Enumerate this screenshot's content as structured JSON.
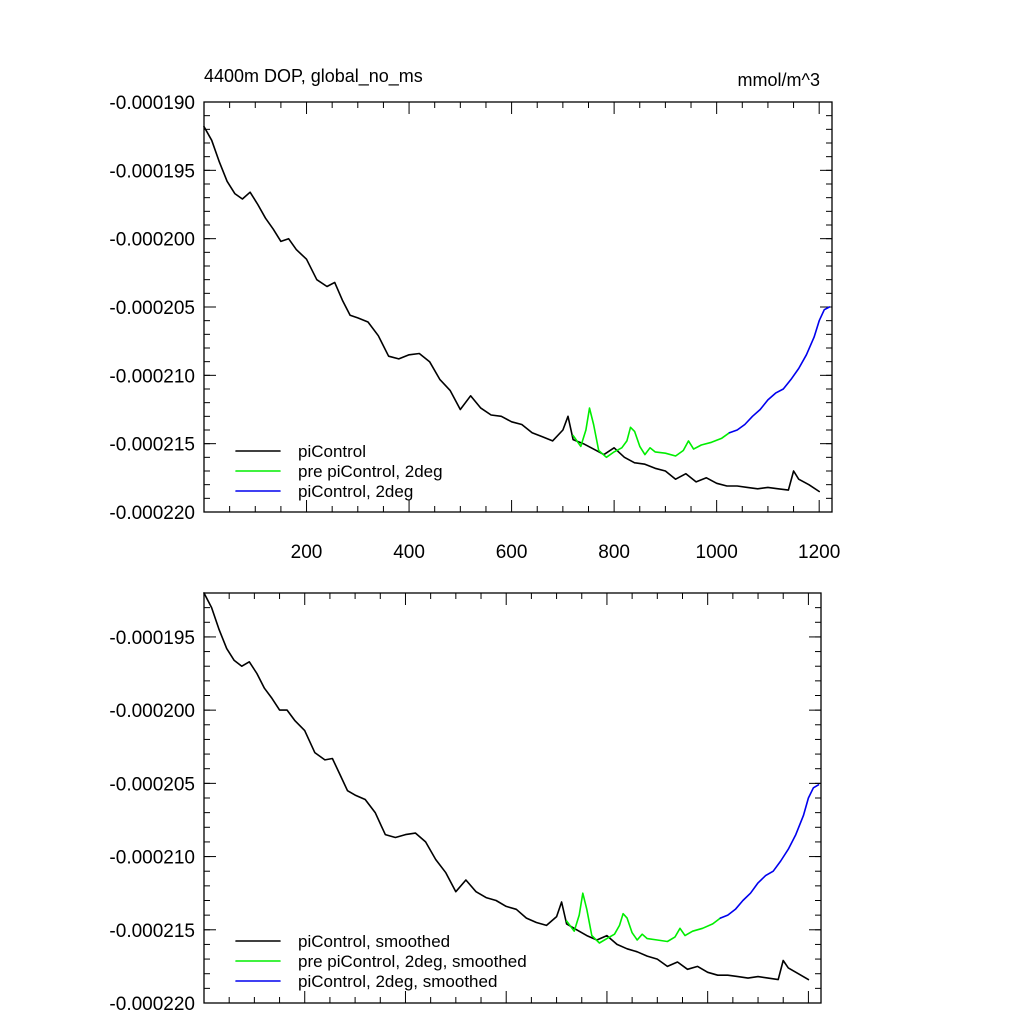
{
  "colors": {
    "piControl": "#000000",
    "pre_piControl_2deg": "#00ee00",
    "piControl_2deg": "#0000ee"
  },
  "chart_data": [
    {
      "type": "line",
      "title_left": "4400m DOP, global_no_ms",
      "title_right": "mmol/m^3",
      "xlim": [
        0,
        1225
      ],
      "ylim": [
        -0.00022,
        -0.00019
      ],
      "xticks": [
        200,
        400,
        600,
        800,
        1000,
        1200
      ],
      "xtick_labels": [
        "200",
        "400",
        "600",
        "800",
        "1000",
        "1200"
      ],
      "yticks": [
        -0.00019,
        -0.000195,
        -0.0002,
        -0.000205,
        -0.00021,
        -0.000215,
        -0.00022
      ],
      "ytick_labels": [
        "-0.000190",
        "-0.000195",
        "-0.000200",
        "-0.000205",
        "-0.000210",
        "-0.000215",
        "-0.000220"
      ],
      "legend_position": "bottom-left",
      "series": [
        {
          "name": "piControl",
          "color": "#000000",
          "x": [
            0,
            15,
            30,
            45,
            60,
            75,
            90,
            105,
            120,
            135,
            150,
            165,
            180,
            200,
            220,
            240,
            255,
            270,
            285,
            300,
            320,
            340,
            360,
            380,
            400,
            420,
            440,
            460,
            480,
            500,
            520,
            540,
            560,
            580,
            600,
            620,
            640,
            660,
            680,
            700,
            710,
            720,
            740,
            760,
            780,
            800,
            820,
            840,
            860,
            880,
            900,
            920,
            940,
            960,
            980,
            1000,
            1020,
            1040,
            1060,
            1080,
            1100,
            1120,
            1140,
            1150,
            1160,
            1180,
            1200
          ],
          "y": [
            -0.0001918,
            -0.0001928,
            -0.0001944,
            -0.0001958,
            -0.0001967,
            -0.0001971,
            -0.0001966,
            -0.0001975,
            -0.0001985,
            -0.0001993,
            -0.0002002,
            -0.0002,
            -0.0002008,
            -0.0002015,
            -0.000203,
            -0.0002035,
            -0.0002032,
            -0.0002045,
            -0.0002056,
            -0.0002058,
            -0.0002061,
            -0.0002071,
            -0.0002086,
            -0.0002088,
            -0.0002085,
            -0.0002084,
            -0.000209,
            -0.0002103,
            -0.0002111,
            -0.0002125,
            -0.0002115,
            -0.0002124,
            -0.0002129,
            -0.000213,
            -0.0002134,
            -0.0002136,
            -0.0002142,
            -0.0002145,
            -0.0002148,
            -0.000214,
            -0.000213,
            -0.0002147,
            -0.000215,
            -0.0002154,
            -0.0002158,
            -0.0002153,
            -0.000216,
            -0.0002164,
            -0.0002165,
            -0.0002168,
            -0.000217,
            -0.0002176,
            -0.0002172,
            -0.0002178,
            -0.0002175,
            -0.0002179,
            -0.0002181,
            -0.0002181,
            -0.0002182,
            -0.0002183,
            -0.0002182,
            -0.0002183,
            -0.0002184,
            -0.000217,
            -0.0002176,
            -0.000218,
            -0.0002185
          ]
        },
        {
          "name": "pre piControl, 2deg",
          "color": "#00ee00",
          "x": [
            720,
            735,
            745,
            752,
            760,
            770,
            785,
            800,
            815,
            825,
            832,
            840,
            850,
            860,
            870,
            880,
            900,
            920,
            935,
            945,
            955,
            970,
            990,
            1010,
            1025
          ],
          "y": [
            -0.0002144,
            -0.0002152,
            -0.000214,
            -0.0002124,
            -0.0002136,
            -0.0002155,
            -0.000216,
            -0.0002156,
            -0.0002153,
            -0.0002148,
            -0.0002138,
            -0.0002141,
            -0.0002152,
            -0.0002158,
            -0.0002153,
            -0.0002156,
            -0.0002157,
            -0.0002159,
            -0.0002155,
            -0.0002148,
            -0.0002154,
            -0.0002151,
            -0.0002149,
            -0.0002146,
            -0.0002142
          ]
        },
        {
          "name": "piControl, 2deg",
          "color": "#0000ee",
          "x": [
            1025,
            1040,
            1055,
            1070,
            1085,
            1100,
            1115,
            1130,
            1145,
            1160,
            1175,
            1190,
            1200,
            1210,
            1220
          ],
          "y": [
            -0.0002142,
            -0.000214,
            -0.0002136,
            -0.000213,
            -0.0002125,
            -0.0002118,
            -0.0002113,
            -0.000211,
            -0.0002103,
            -0.0002095,
            -0.0002085,
            -0.0002072,
            -0.000206,
            -0.0002052,
            -0.000205
          ]
        }
      ]
    },
    {
      "type": "line",
      "xlim": [
        0,
        1225
      ],
      "ylim": [
        -0.00022,
        -0.000192
      ],
      "xticks": [
        200,
        400,
        600,
        800,
        1000,
        1200
      ],
      "yticks": [
        -0.000195,
        -0.0002,
        -0.000205,
        -0.00021,
        -0.000215,
        -0.00022
      ],
      "ytick_labels": [
        "-0.000195",
        "-0.000200",
        "-0.000205",
        "-0.000210",
        "-0.000215",
        "-0.000220"
      ],
      "legend_position": "bottom-left",
      "series": [
        {
          "name": "piControl, smoothed",
          "color": "#000000",
          "x": [
            0,
            15,
            30,
            45,
            60,
            75,
            90,
            105,
            120,
            135,
            150,
            165,
            180,
            200,
            220,
            240,
            255,
            270,
            285,
            300,
            320,
            340,
            360,
            380,
            400,
            420,
            440,
            460,
            480,
            500,
            520,
            540,
            560,
            580,
            600,
            620,
            640,
            660,
            680,
            700,
            710,
            720,
            740,
            760,
            780,
            800,
            820,
            840,
            860,
            880,
            900,
            920,
            940,
            960,
            980,
            1000,
            1020,
            1040,
            1060,
            1080,
            1100,
            1120,
            1140,
            1150,
            1160,
            1180,
            1200
          ],
          "y": [
            -0.000192,
            -0.000193,
            -0.0001945,
            -0.0001958,
            -0.0001966,
            -0.000197,
            -0.0001967,
            -0.0001975,
            -0.0001985,
            -0.0001992,
            -0.0002,
            -0.0002,
            -0.0002007,
            -0.0002014,
            -0.0002029,
            -0.0002034,
            -0.0002033,
            -0.0002044,
            -0.0002055,
            -0.0002058,
            -0.0002061,
            -0.000207,
            -0.0002085,
            -0.0002087,
            -0.0002085,
            -0.0002084,
            -0.000209,
            -0.0002102,
            -0.0002111,
            -0.0002124,
            -0.0002116,
            -0.0002124,
            -0.0002128,
            -0.000213,
            -0.0002134,
            -0.0002136,
            -0.0002142,
            -0.0002145,
            -0.0002147,
            -0.0002141,
            -0.0002131,
            -0.0002146,
            -0.000215,
            -0.0002154,
            -0.0002157,
            -0.0002154,
            -0.000216,
            -0.0002163,
            -0.0002165,
            -0.0002168,
            -0.000217,
            -0.0002175,
            -0.0002172,
            -0.0002177,
            -0.0002175,
            -0.0002179,
            -0.0002181,
            -0.0002181,
            -0.0002182,
            -0.0002183,
            -0.0002182,
            -0.0002183,
            -0.0002184,
            -0.0002171,
            -0.0002176,
            -0.000218,
            -0.0002184
          ]
        },
        {
          "name": "pre piControl, 2deg, smoothed",
          "color": "#00ee00",
          "x": [
            720,
            735,
            745,
            752,
            760,
            770,
            785,
            800,
            815,
            825,
            832,
            840,
            850,
            860,
            870,
            880,
            900,
            920,
            935,
            945,
            955,
            970,
            990,
            1010,
            1025
          ],
          "y": [
            -0.0002144,
            -0.0002151,
            -0.000214,
            -0.0002125,
            -0.0002136,
            -0.0002154,
            -0.0002159,
            -0.0002156,
            -0.0002153,
            -0.0002147,
            -0.0002139,
            -0.0002142,
            -0.0002152,
            -0.0002157,
            -0.0002153,
            -0.0002156,
            -0.0002157,
            -0.0002158,
            -0.0002155,
            -0.0002149,
            -0.0002154,
            -0.0002151,
            -0.0002149,
            -0.0002146,
            -0.0002142
          ]
        },
        {
          "name": "piControl, 2deg, smoothed",
          "color": "#0000ee",
          "x": [
            1025,
            1040,
            1055,
            1070,
            1085,
            1100,
            1115,
            1130,
            1145,
            1160,
            1175,
            1190,
            1200,
            1210,
            1220
          ],
          "y": [
            -0.0002142,
            -0.000214,
            -0.0002136,
            -0.000213,
            -0.0002125,
            -0.0002118,
            -0.0002113,
            -0.000211,
            -0.0002103,
            -0.0002095,
            -0.0002085,
            -0.0002072,
            -0.000206,
            -0.0002053,
            -0.0002051
          ]
        }
      ]
    }
  ]
}
